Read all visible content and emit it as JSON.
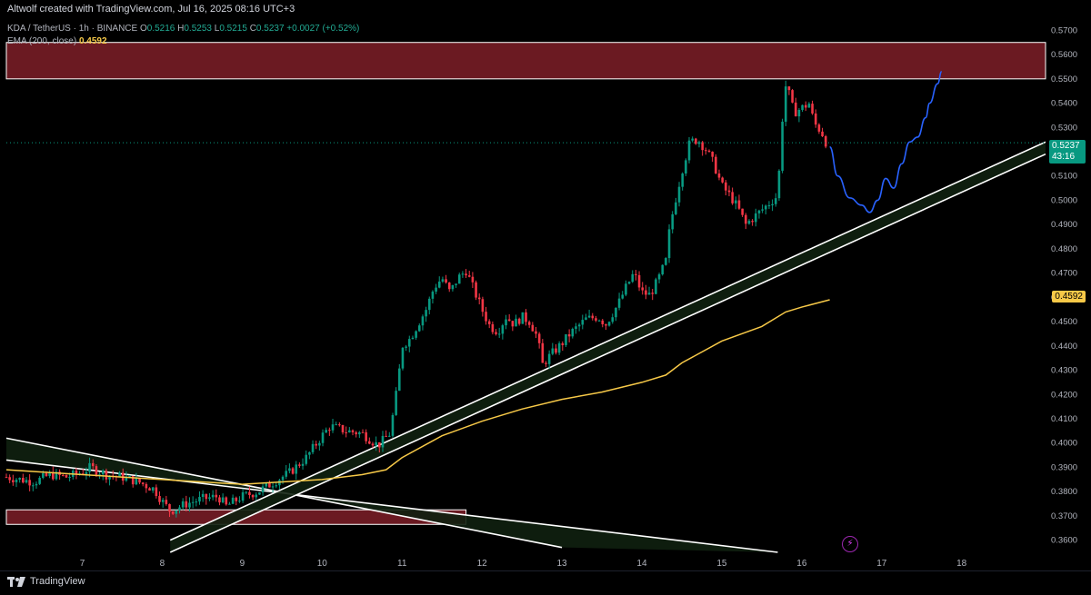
{
  "header": {
    "byline": "Altwolf created with TradingView.com, Jul 16, 2025 08:16 UTC+3",
    "symbol_line": "KDA / TetherUS · 1h · BINANCE",
    "open_label": "O",
    "open": "0.5216",
    "high_label": "H",
    "high": "0.5253",
    "low_label": "L",
    "low": "0.5215",
    "close_label": "C",
    "close": "0.5237",
    "change": "+0.0027 (+0.52%)",
    "ema_label": "EMA (200, close)",
    "ema_value": "0.4592"
  },
  "price_tags": {
    "last_price": "0.5237",
    "countdown": "43:16",
    "ema": "0.4592"
  },
  "footer": {
    "brand": "TradingView"
  },
  "colors": {
    "up": "#089981",
    "down": "#f23645",
    "ema": "#f7c948",
    "zone": "#6b1a22",
    "channel": "#102010",
    "projection": "#2962ff",
    "grid": "#000000"
  },
  "chart_data": {
    "type": "candlestick",
    "title": "KDA / TetherUS · 1h · BINANCE",
    "ylim": [
      0.355,
      0.575
    ],
    "yticks": [
      "0.3600",
      "0.3700",
      "0.3800",
      "0.3900",
      "0.4000",
      "0.4100",
      "0.4200",
      "0.4300",
      "0.4400",
      "0.4500",
      "0.4600",
      "0.4700",
      "0.4800",
      "0.4900",
      "0.5000",
      "0.5100",
      "0.5200",
      "0.5300",
      "0.5400",
      "0.5500",
      "0.5600",
      "0.5700"
    ],
    "xticks": [
      "7",
      "8",
      "9",
      "10",
      "11",
      "12",
      "13",
      "14",
      "15",
      "16",
      "17",
      "18"
    ],
    "xrange": [
      6.05,
      19.05
    ],
    "close_path": [
      [
        6.05,
        0.386
      ],
      [
        6.4,
        0.384
      ],
      [
        6.6,
        0.387
      ],
      [
        6.8,
        0.386
      ],
      [
        7.0,
        0.388
      ],
      [
        7.1,
        0.39
      ],
      [
        7.3,
        0.387
      ],
      [
        7.5,
        0.386
      ],
      [
        7.7,
        0.384
      ],
      [
        7.9,
        0.381
      ],
      [
        8.0,
        0.376
      ],
      [
        8.1,
        0.372
      ],
      [
        8.3,
        0.375
      ],
      [
        8.5,
        0.377
      ],
      [
        8.7,
        0.378
      ],
      [
        8.8,
        0.374
      ],
      [
        9.0,
        0.378
      ],
      [
        9.2,
        0.38
      ],
      [
        9.4,
        0.384
      ],
      [
        9.6,
        0.388
      ],
      [
        9.8,
        0.394
      ],
      [
        10.0,
        0.403
      ],
      [
        10.1,
        0.407
      ],
      [
        10.3,
        0.405
      ],
      [
        10.5,
        0.404
      ],
      [
        10.7,
        0.399
      ],
      [
        10.85,
        0.404
      ],
      [
        10.95,
        0.425
      ],
      [
        11.0,
        0.44
      ],
      [
        11.1,
        0.443
      ],
      [
        11.2,
        0.449
      ],
      [
        11.3,
        0.455
      ],
      [
        11.4,
        0.464
      ],
      [
        11.5,
        0.468
      ],
      [
        11.6,
        0.462
      ],
      [
        11.7,
        0.468
      ],
      [
        11.8,
        0.471
      ],
      [
        11.9,
        0.463
      ],
      [
        12.0,
        0.455
      ],
      [
        12.1,
        0.448
      ],
      [
        12.2,
        0.446
      ],
      [
        12.3,
        0.452
      ],
      [
        12.4,
        0.449
      ],
      [
        12.5,
        0.452
      ],
      [
        12.6,
        0.45
      ],
      [
        12.7,
        0.443
      ],
      [
        12.75,
        0.432
      ],
      [
        12.85,
        0.436
      ],
      [
        13.0,
        0.441
      ],
      [
        13.1,
        0.445
      ],
      [
        13.2,
        0.448
      ],
      [
        13.3,
        0.451
      ],
      [
        13.45,
        0.452
      ],
      [
        13.55,
        0.449
      ],
      [
        13.7,
        0.457
      ],
      [
        13.8,
        0.464
      ],
      [
        13.9,
        0.47
      ],
      [
        14.0,
        0.462
      ],
      [
        14.1,
        0.461
      ],
      [
        14.2,
        0.467
      ],
      [
        14.3,
        0.475
      ],
      [
        14.35,
        0.489
      ],
      [
        14.4,
        0.497
      ],
      [
        14.5,
        0.512
      ],
      [
        14.6,
        0.524
      ],
      [
        14.7,
        0.525
      ],
      [
        14.8,
        0.521
      ],
      [
        14.9,
        0.515
      ],
      [
        15.0,
        0.506
      ],
      [
        15.1,
        0.502
      ],
      [
        15.2,
        0.497
      ],
      [
        15.3,
        0.49
      ],
      [
        15.4,
        0.493
      ],
      [
        15.5,
        0.496
      ],
      [
        15.6,
        0.499
      ],
      [
        15.7,
        0.502
      ],
      [
        15.75,
        0.531
      ],
      [
        15.8,
        0.547
      ],
      [
        15.85,
        0.543
      ],
      [
        15.9,
        0.536
      ],
      [
        16.0,
        0.538
      ],
      [
        16.1,
        0.54
      ],
      [
        16.15,
        0.532
      ],
      [
        16.25,
        0.528
      ],
      [
        16.3,
        0.524
      ]
    ],
    "ema_path": [
      [
        6.05,
        0.389
      ],
      [
        7.0,
        0.387
      ],
      [
        8.0,
        0.385
      ],
      [
        9.0,
        0.383
      ],
      [
        9.5,
        0.384
      ],
      [
        10.0,
        0.385
      ],
      [
        10.5,
        0.387
      ],
      [
        10.8,
        0.389
      ],
      [
        11.0,
        0.394
      ],
      [
        11.5,
        0.403
      ],
      [
        12.0,
        0.409
      ],
      [
        12.5,
        0.414
      ],
      [
        13.0,
        0.418
      ],
      [
        13.5,
        0.421
      ],
      [
        14.0,
        0.425
      ],
      [
        14.3,
        0.428
      ],
      [
        14.5,
        0.433
      ],
      [
        15.0,
        0.442
      ],
      [
        15.5,
        0.448
      ],
      [
        15.8,
        0.454
      ],
      [
        16.0,
        0.456
      ],
      [
        16.35,
        0.459
      ]
    ],
    "supply_zone": {
      "from": 6.05,
      "to": 19.05,
      "low": 0.55,
      "high": 0.565
    },
    "demand_zone": {
      "from": 6.05,
      "to": 11.8,
      "low": 0.3665,
      "high": 0.3725
    },
    "rising_channel": [
      [
        8.1,
        0.36,
        19.05,
        0.524
      ],
      [
        8.1,
        0.355,
        19.05,
        0.519
      ]
    ],
    "falling_channel": [
      [
        6.05,
        0.402,
        13.0,
        0.357
      ],
      [
        6.05,
        0.393,
        15.7,
        0.355
      ]
    ],
    "projection_path": [
      [
        16.35,
        0.522
      ],
      [
        16.45,
        0.51
      ],
      [
        16.6,
        0.501
      ],
      [
        16.75,
        0.498
      ],
      [
        16.85,
        0.495
      ],
      [
        16.95,
        0.5
      ],
      [
        17.05,
        0.509
      ],
      [
        17.15,
        0.505
      ],
      [
        17.25,
        0.515
      ],
      [
        17.35,
        0.524
      ],
      [
        17.45,
        0.526
      ],
      [
        17.55,
        0.534
      ],
      [
        17.6,
        0.54
      ],
      [
        17.7,
        0.548
      ],
      [
        17.75,
        0.553
      ]
    ]
  }
}
